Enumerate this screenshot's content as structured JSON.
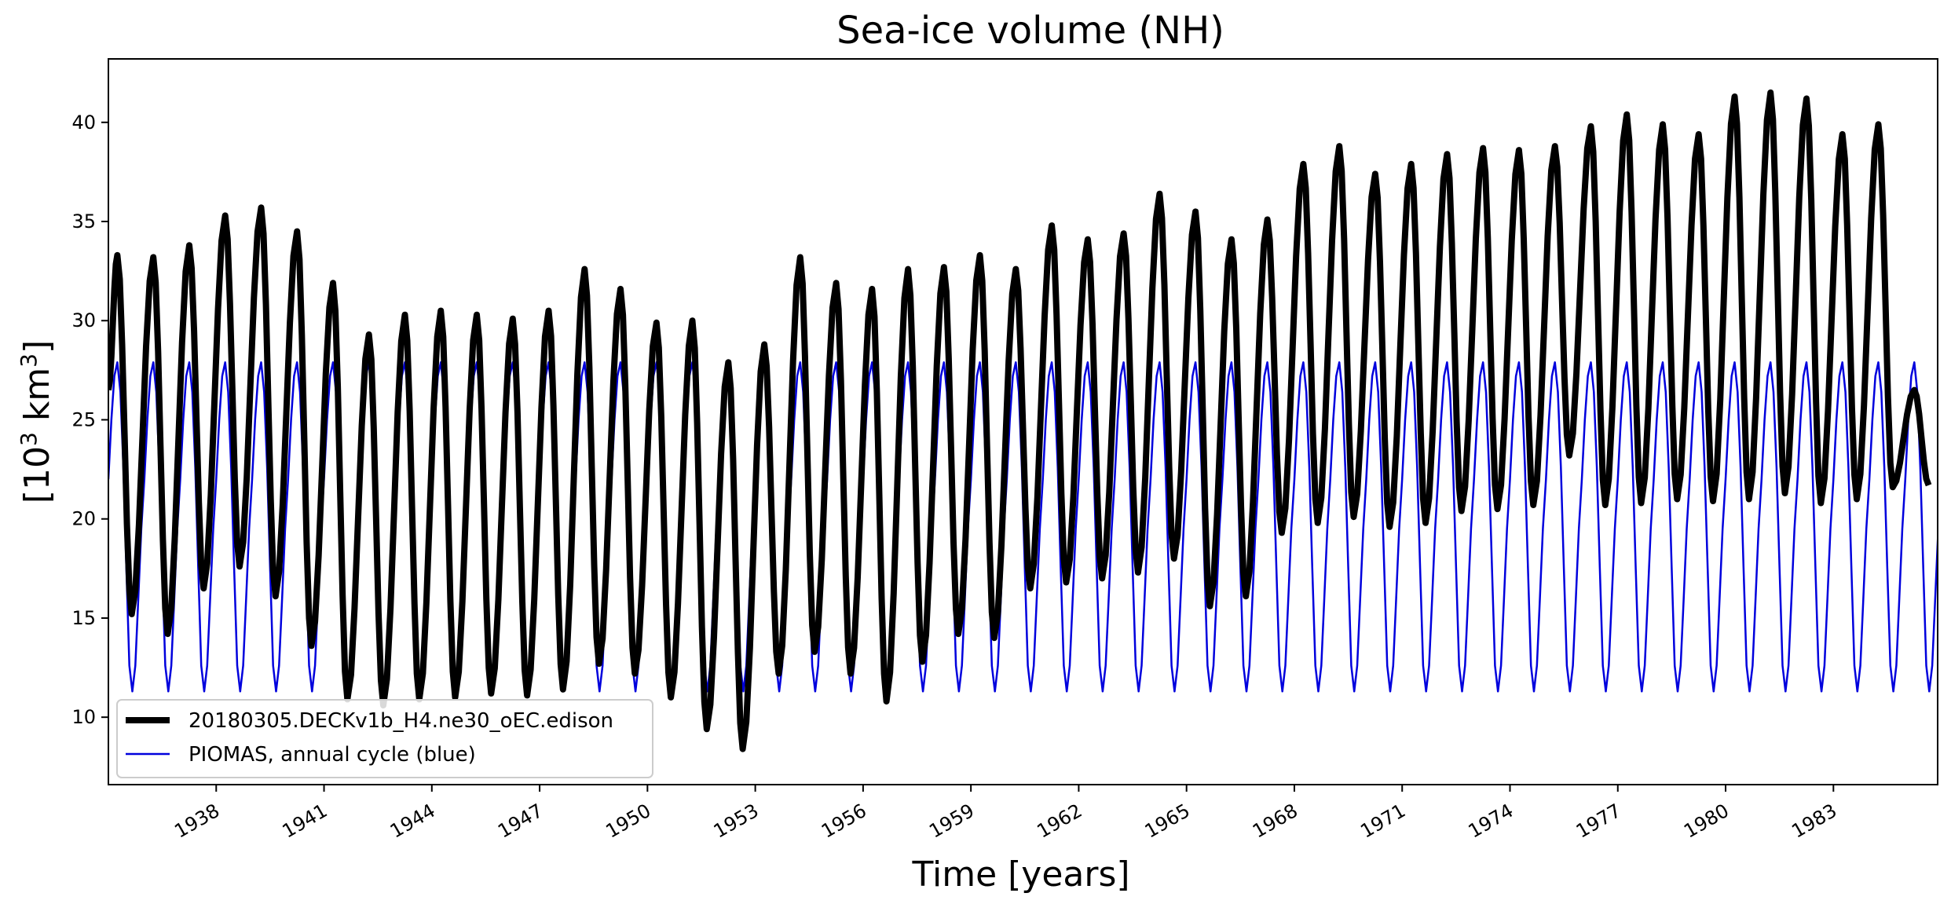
{
  "chart_data": {
    "type": "line",
    "title": "Sea-ice volume (NH)",
    "xlabel": "Time [years]",
    "ylabel_base": "[10",
    "ylabel_sup": "3",
    "ylabel_mid": " km",
    "ylabel_sup2": "3",
    "ylabel_end": "]",
    "xlim": [
      1935.0,
      1985.9
    ],
    "ylim": [
      6.6,
      43.2
    ],
    "xticks": [
      1938,
      1941,
      1944,
      1947,
      1950,
      1953,
      1956,
      1959,
      1962,
      1965,
      1968,
      1971,
      1974,
      1977,
      1980,
      1983
    ],
    "xtick_labels": [
      "1938",
      "1941",
      "1944",
      "1947",
      "1950",
      "1953",
      "1956",
      "1959",
      "1962",
      "1965",
      "1968",
      "1971",
      "1974",
      "1977",
      "1980",
      "1983"
    ],
    "yticks": [
      10,
      15,
      20,
      25,
      30,
      35,
      40
    ],
    "ytick_labels": [
      "10",
      "15",
      "20",
      "25",
      "30",
      "35",
      "40"
    ],
    "legend_location": "lower-left",
    "series": [
      {
        "name": "20180305.DECKv1b_H4.ne30_oEC.edison",
        "color": "#000000",
        "style": "thick",
        "start_year": 1935,
        "annual_max": [
          33.3,
          33.2,
          33.8,
          35.3,
          35.7,
          34.5,
          31.9,
          29.3,
          30.3,
          30.5,
          30.3,
          30.1,
          30.5,
          32.6,
          31.6,
          29.9,
          30.0,
          27.9,
          28.8,
          33.2,
          31.9,
          31.6,
          32.6,
          32.7,
          33.3,
          32.6,
          34.8,
          34.1,
          34.4,
          36.4,
          35.5,
          34.1,
          35.1,
          37.9,
          38.8,
          37.4,
          37.9,
          38.4,
          38.7,
          38.6,
          38.8,
          39.8,
          40.4,
          39.9,
          39.4,
          41.3,
          41.5,
          41.2,
          39.4,
          39.9,
          26.5
        ],
        "annual_min": [
          15.2,
          14.2,
          16.5,
          17.6,
          16.1,
          13.6,
          10.9,
          10.6,
          10.9,
          11.0,
          11.2,
          11.1,
          11.4,
          12.7,
          12.2,
          11.0,
          9.4,
          8.4,
          12.2,
          13.3,
          12.2,
          10.8,
          12.8,
          14.2,
          14.0,
          16.5,
          16.8,
          17.0,
          17.3,
          18.0,
          15.6,
          16.1,
          19.3,
          19.8,
          20.1,
          19.6,
          19.8,
          20.4,
          20.5,
          20.7,
          23.2,
          20.7,
          20.8,
          21.0,
          20.9,
          21.0,
          21.3,
          20.8,
          21.0,
          21.6,
          21.7
        ]
      },
      {
        "name": "PIOMAS, annual cycle (blue)",
        "color": "#0000dd",
        "style": "thin",
        "monthly_cycle": [
          22.0,
          25.0,
          27.2,
          27.9,
          26.4,
          22.6,
          17.5,
          12.6,
          11.3,
          12.6,
          16.0,
          19.5
        ]
      }
    ]
  }
}
